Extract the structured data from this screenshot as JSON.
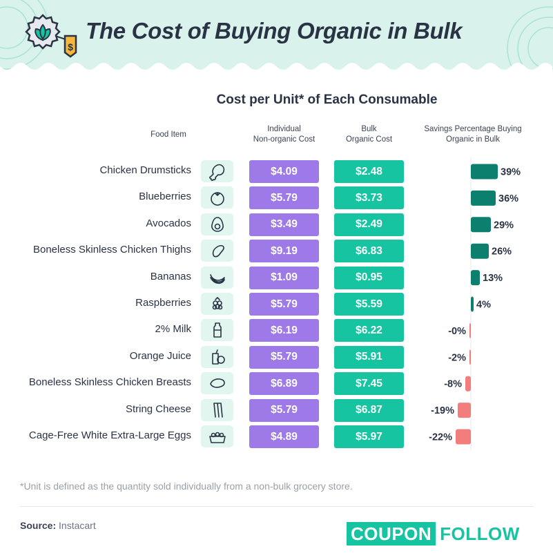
{
  "title": "The Cost of Buying Organic in Bulk",
  "subtitle": "Cost per Unit* of Each Consumable",
  "column_headers": {
    "food": "Food Item",
    "individual_line1": "Individual",
    "individual_line2": "Non-organic Cost",
    "bulk_line1": "Bulk",
    "bulk_line2": "Organic Cost",
    "savings_line1": "Savings Percentage Buying",
    "savings_line2": "Organic in Bulk"
  },
  "colors": {
    "individual": "#9d7ae8",
    "bulk": "#17c4a2",
    "positive_bar": "#0d7f6e",
    "negative_bar": "#f27d7d",
    "header_bg": "#d9f3ec"
  },
  "chart_data": {
    "type": "table",
    "columns": [
      "Food Item",
      "Individual Non-organic Cost",
      "Bulk Organic Cost",
      "Savings Percentage Buying Organic in Bulk"
    ],
    "rows": [
      {
        "item": "Chicken Drumsticks",
        "icon": "drumstick-icon",
        "individual": "$4.09",
        "bulk": "$2.48",
        "savings": 39,
        "savings_label": "39%"
      },
      {
        "item": "Blueberries",
        "icon": "blueberry-icon",
        "individual": "$5.79",
        "bulk": "$3.73",
        "savings": 36,
        "savings_label": "36%"
      },
      {
        "item": "Avocados",
        "icon": "avocado-icon",
        "individual": "$3.49",
        "bulk": "$2.49",
        "savings": 29,
        "savings_label": "29%"
      },
      {
        "item": "Boneless Skinless Chicken Thighs",
        "icon": "chicken-thigh-icon",
        "individual": "$9.19",
        "bulk": "$6.83",
        "savings": 26,
        "savings_label": "26%"
      },
      {
        "item": "Bananas",
        "icon": "banana-icon",
        "individual": "$1.09",
        "bulk": "$0.95",
        "savings": 13,
        "savings_label": "13%"
      },
      {
        "item": "Raspberries",
        "icon": "raspberry-icon",
        "individual": "$5.79",
        "bulk": "$5.59",
        "savings": 4,
        "savings_label": "4%"
      },
      {
        "item": "2% Milk",
        "icon": "milk-bottle-icon",
        "individual": "$6.19",
        "bulk": "$6.22",
        "savings": -0.5,
        "savings_label": "-0%"
      },
      {
        "item": "Orange Juice",
        "icon": "orange-juice-icon",
        "individual": "$5.79",
        "bulk": "$5.91",
        "savings": -2,
        "savings_label": "-2%"
      },
      {
        "item": "Boneless Skinless Chicken Breasts",
        "icon": "chicken-breast-icon",
        "individual": "$6.89",
        "bulk": "$7.45",
        "savings": -8,
        "savings_label": "-8%"
      },
      {
        "item": "String Cheese",
        "icon": "string-cheese-icon",
        "individual": "$5.79",
        "bulk": "$6.87",
        "savings": -19,
        "savings_label": "-19%"
      },
      {
        "item": "Cage-Free White Extra-Large Eggs",
        "icon": "egg-carton-icon",
        "individual": "$4.89",
        "bulk": "$5.97",
        "savings": -22,
        "savings_label": "-22%"
      }
    ],
    "savings_axis_zero": 0
  },
  "footnote": "*Unit is defined as the quantity sold individually from a non-bulk grocery store.",
  "source_label": "Source:",
  "source_value": "Instacart",
  "brand": {
    "box_text": "COUPON",
    "rest_text": "FOLLOW"
  }
}
